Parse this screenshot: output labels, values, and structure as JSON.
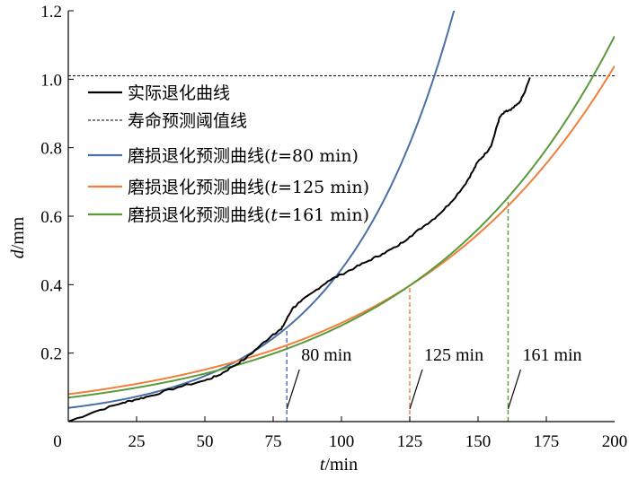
{
  "chart_data": {
    "type": "line",
    "title": "",
    "xlabel": "t/min",
    "xlabel_var": "t",
    "xlabel_unit": "/min",
    "ylabel": "d/mm",
    "ylabel_var": "d",
    "ylabel_unit": "/mm",
    "xlim": [
      0,
      200
    ],
    "ylim": [
      0,
      1.2
    ],
    "xticks": [
      0,
      25,
      50,
      75,
      100,
      125,
      150,
      175,
      200
    ],
    "yticks": [
      0.2,
      0.4,
      0.6,
      0.8,
      1.0,
      1.2
    ],
    "xtick_labels": [
      "0",
      "25",
      "50",
      "75",
      "100",
      "125",
      "150",
      "175",
      "200"
    ],
    "ytick_labels": [
      "0.2",
      "0.4",
      "0.6",
      "0.8",
      "1.0",
      "1.2"
    ],
    "legend_position": "upper-left",
    "threshold": {
      "name": "寿命预测阈值线",
      "value": 1.01,
      "color": "#000000",
      "style": "dashed"
    },
    "series": [
      {
        "name": "实际退化曲线",
        "color": "#000000",
        "x": [
          0,
          10,
          20,
          25,
          30,
          40,
          50,
          55,
          60,
          65,
          70,
          75,
          78,
          80,
          82,
          85,
          90,
          95,
          100,
          105,
          110,
          115,
          120,
          125,
          130,
          135,
          140,
          145,
          148,
          150,
          153,
          155,
          157,
          158,
          160,
          162,
          165,
          167,
          169
        ],
        "y": [
          0.0,
          0.03,
          0.055,
          0.065,
          0.075,
          0.1,
          0.12,
          0.135,
          0.16,
          0.185,
          0.22,
          0.255,
          0.27,
          0.3,
          0.33,
          0.35,
          0.38,
          0.41,
          0.43,
          0.45,
          0.47,
          0.49,
          0.51,
          0.54,
          0.57,
          0.6,
          0.64,
          0.69,
          0.73,
          0.76,
          0.785,
          0.81,
          0.865,
          0.89,
          0.905,
          0.91,
          0.93,
          0.96,
          1.005
        ]
      },
      {
        "name_prefix": "磨损退化预测曲线(",
        "name_var": "t",
        "name_suffix": "=80 min)",
        "name": "磨损退化预测曲线(t=80 min)",
        "color": "#4a6fa5",
        "model": "exponential",
        "a": 0.04,
        "b": 0.02409,
        "x_range": [
          0,
          150
        ]
      },
      {
        "name_prefix": "磨损退化预测曲线(",
        "name_var": "t",
        "name_suffix": "=125 min)",
        "name": "磨损退化预测曲线(t=125 min)",
        "color": "#f07f3c",
        "model": "exponential",
        "a": 0.08,
        "b": 0.01282,
        "x_range": [
          0,
          200
        ]
      },
      {
        "name_prefix": "磨损退化预测曲线(",
        "name_var": "t",
        "name_suffix": "=161 min)",
        "name": "磨损退化预测曲线(t=161 min)",
        "color": "#5a9a3c",
        "model": "exponential",
        "a": 0.07,
        "b": 0.01389,
        "x_range": [
          0,
          200
        ]
      }
    ],
    "markers": [
      {
        "x": 80,
        "label": "80 min",
        "color": "#4a6fa5"
      },
      {
        "x": 125,
        "label": "125 min",
        "color": "#f07f3c"
      },
      {
        "x": 161,
        "label": "161 min",
        "color": "#5a9a3c"
      }
    ]
  }
}
